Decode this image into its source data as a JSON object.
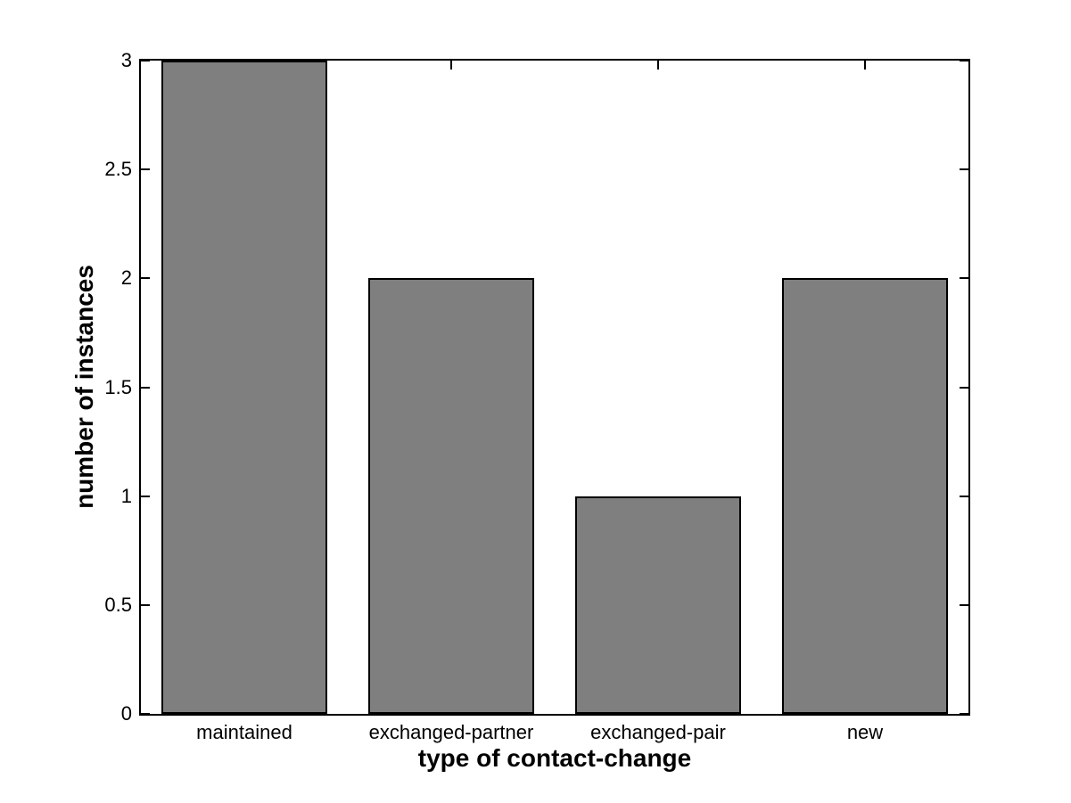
{
  "figure": {
    "background_color": "#FFFFFF",
    "axis_color": "#000000",
    "bar_fill_color": "#7F7F7F",
    "bar_edge_color": "#000000"
  },
  "chart_data": {
    "type": "bar",
    "title": "",
    "xlabel": "type of contact-change",
    "ylabel": "number of instances",
    "categories": [
      "maintained",
      "exchanged-partner",
      "exchanged-pair",
      "new"
    ],
    "values": [
      3,
      2,
      1,
      2
    ],
    "ylim": [
      0,
      3
    ],
    "yticks": [
      0,
      0.5,
      1,
      1.5,
      2,
      2.5,
      3
    ],
    "ytick_labels": [
      "0",
      "0.5",
      "1",
      "1.5",
      "2",
      "2.5",
      "3"
    ],
    "bar_width_fraction": 0.8,
    "grid": false,
    "legend": "none",
    "tick_direction": "in",
    "box": true
  }
}
